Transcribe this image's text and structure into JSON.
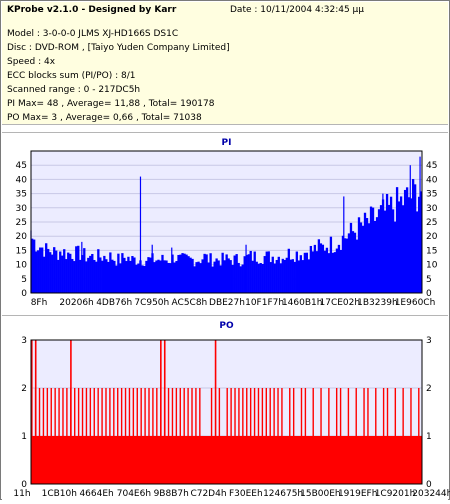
{
  "header": {
    "title": "KProbe v2.1.0 - Designed by Karr",
    "date": "Date : 10/11/2004 4:32:45 μμ",
    "model": "Model : 3-0-0-0 JLMS    XJ-HD166S     DS1C",
    "disc": "Disc : DVD-ROM ,  [Taiyo Yuden Company Limited]",
    "speed": "Speed : 4x",
    "ecc": "ECC blocks sum (PI/PO) : 8/1",
    "range": "Scanned range : 0 - 217DC5h",
    "pi_stats": "PI Max= 48 , Average= 11,88 , Total= 190178",
    "po_stats": "PO Max= 3 , Average= 0,66 , Total= 71038"
  },
  "colors": {
    "header_bg": "#fffee0",
    "plot_bg": "#ececff",
    "pi_fill": "#0000ff",
    "po_fill": "#ff0000",
    "title": "#0000aa"
  },
  "chart_data": [
    {
      "type": "area",
      "title": "PI",
      "ylim": [
        0,
        50
      ],
      "yticks": [
        0,
        5,
        10,
        15,
        20,
        25,
        30,
        35,
        40,
        45
      ],
      "xtick_labels": [
        "8Fh",
        "20206h",
        "4DB76h",
        "7C950h",
        "AC5C8h",
        "DBE27h",
        "10F1F7h",
        "1460B1h",
        "17CE02h",
        "1B3239h",
        "1E960Ch"
      ],
      "series": [
        {
          "values": [
            18,
            16,
            15,
            14,
            14,
            13,
            14,
            13,
            13,
            13,
            13,
            12,
            12,
            12,
            12,
            12,
            12,
            11,
            11,
            12,
            11,
            11,
            11,
            11,
            11,
            11,
            11,
            11,
            11,
            12,
            11,
            11,
            11,
            11,
            11,
            12,
            11,
            11,
            11,
            11,
            11,
            11,
            11,
            11,
            12,
            12,
            12,
            12,
            12,
            12,
            12,
            12,
            13,
            13,
            13,
            13,
            14,
            14,
            15,
            15,
            16,
            16,
            17,
            18,
            19,
            20,
            21,
            22,
            23,
            24,
            25,
            26,
            27,
            28,
            29,
            30,
            31,
            32,
            33,
            34
          ],
          "peaks": [
            {
              "x": 0.0,
              "y": 22
            },
            {
              "x": 0.13,
              "y": 18
            },
            {
              "x": 0.28,
              "y": 41
            },
            {
              "x": 0.31,
              "y": 17
            },
            {
              "x": 0.36,
              "y": 16
            },
            {
              "x": 0.55,
              "y": 17
            },
            {
              "x": 0.8,
              "y": 34
            },
            {
              "x": 0.9,
              "y": 35
            },
            {
              "x": 0.97,
              "y": 45
            },
            {
              "x": 0.995,
              "y": 48
            }
          ]
        }
      ]
    },
    {
      "type": "bar",
      "title": "PO",
      "ylim": [
        0,
        3
      ],
      "yticks": [
        0,
        1,
        2,
        3
      ],
      "xtick_labels": [
        "11h",
        "1CB10h",
        "4664Eh",
        "704E6h",
        "9B8B7h",
        "C72D4h",
        "F30EEh",
        "124675h",
        "15B00Eh",
        "1919EFh",
        "1C9201h",
        "203244h"
      ],
      "series": [
        {
          "baseline": 1,
          "level2_x": [
            0.0,
            0.01,
            0.02,
            0.03,
            0.04,
            0.05,
            0.06,
            0.07,
            0.08,
            0.09,
            0.1,
            0.11,
            0.12,
            0.13,
            0.14,
            0.15,
            0.16,
            0.17,
            0.18,
            0.19,
            0.2,
            0.21,
            0.22,
            0.23,
            0.24,
            0.25,
            0.26,
            0.27,
            0.28,
            0.29,
            0.3,
            0.31,
            0.32,
            0.33,
            0.34,
            0.35,
            0.36,
            0.37,
            0.38,
            0.39,
            0.4,
            0.41,
            0.42,
            0.43,
            0.46,
            0.48,
            0.5,
            0.51,
            0.52,
            0.53,
            0.54,
            0.55,
            0.56,
            0.57,
            0.58,
            0.59,
            0.6,
            0.61,
            0.62,
            0.63,
            0.64,
            0.66,
            0.67,
            0.69,
            0.7,
            0.72,
            0.74,
            0.76,
            0.78,
            0.79,
            0.81,
            0.83,
            0.85,
            0.86,
            0.88,
            0.9,
            0.91,
            0.93,
            0.95,
            0.97,
            0.99
          ],
          "level3_x": [
            0.0,
            0.01,
            0.1,
            0.33,
            0.34,
            0.47
          ]
        }
      ]
    }
  ]
}
